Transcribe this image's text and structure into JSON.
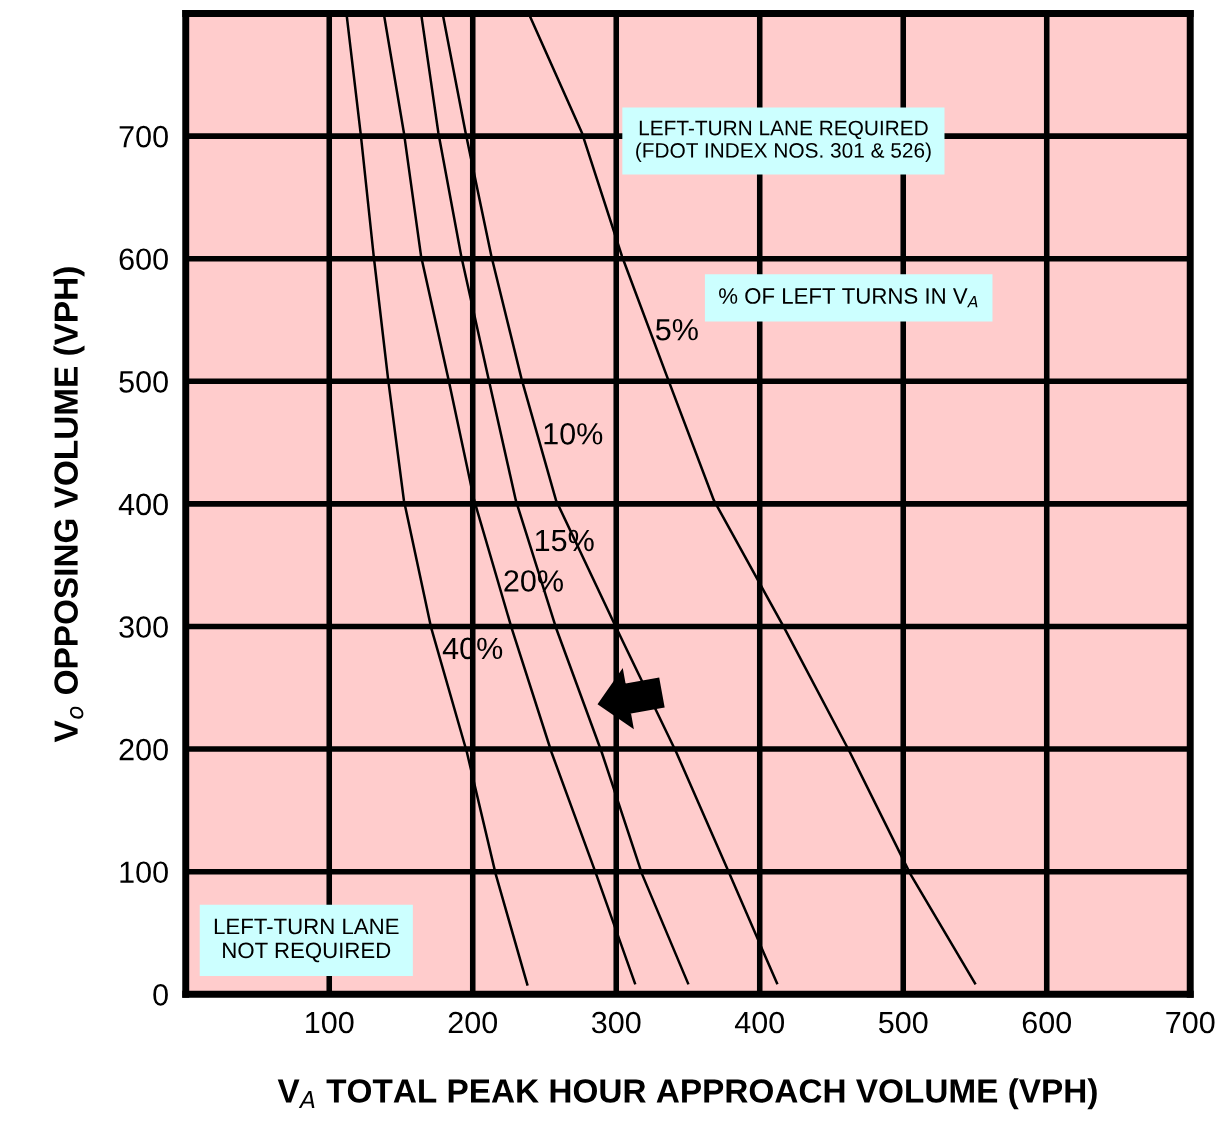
{
  "chart_data": {
    "type": "line",
    "xlabel": "V$_{A}$ TOTAL PEAK HOUR APPROACH VOLUME (VPH)",
    "ylabel": "V$_{o}$ OPPOSING VOLUME (VPH)",
    "xlim": [
      0,
      700
    ],
    "ylim": [
      0,
      800
    ],
    "xticks": [
      100,
      200,
      300,
      400,
      500,
      600,
      700
    ],
    "yticks": [
      0,
      100,
      200,
      300,
      400,
      500,
      600,
      700
    ],
    "grid": true,
    "legend": false,
    "marker": "none",
    "line_style": "solid",
    "series": [
      {
        "name": "40%",
        "color": "#000000",
        "x": [
          112,
          122,
          131,
          141,
          152,
          171,
          196,
          216,
          238
        ],
        "values": [
          800,
          701,
          602,
          502,
          403,
          299,
          197,
          98,
          8
        ]
      },
      {
        "name": "20%",
        "color": "#000000",
        "x": [
          138,
          152,
          164,
          183,
          201,
          227,
          255,
          286,
          313
        ],
        "values": [
          800,
          703,
          602,
          502,
          403,
          299,
          197,
          98,
          9
        ]
      },
      {
        "name": "15%",
        "color": "#000000",
        "x": [
          164,
          176,
          192,
          211,
          230,
          258,
          290,
          318,
          350
        ],
        "values": [
          800,
          703,
          602,
          502,
          403,
          299,
          197,
          98,
          9
        ]
      },
      {
        "name": "10%",
        "color": "#000000",
        "x": [
          179,
          195,
          213,
          234,
          258,
          300,
          342,
          379,
          412
        ],
        "values": [
          800,
          703,
          602,
          502,
          403,
          299,
          197,
          98,
          9
        ]
      },
      {
        "name": "5%",
        "color": "#000000",
        "x": [
          239,
          276,
          304,
          336,
          368,
          417,
          463,
          505,
          550
        ],
        "values": [
          800,
          703,
          602,
          502,
          403,
          299,
          197,
          98,
          9
        ]
      }
    ],
    "annotations": [
      "LEFT-TURN LANE REQUIRED\n(FDOT INDEX NOS. 301 & 526)",
      "% OF LEFT TURNS IN V$_{A}$",
      "LEFT-TURN LANE\nNOT REQUIRED"
    ]
  }
}
